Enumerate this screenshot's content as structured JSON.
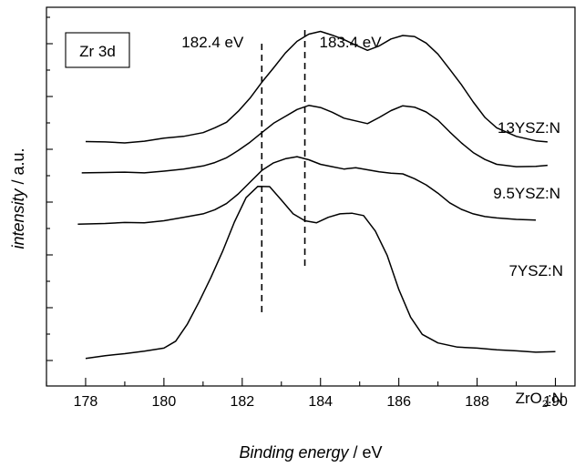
{
  "chart_data": {
    "type": "line",
    "xlabel": "Binding energy",
    "xunit": " / eV",
    "ylabel_italic": "intensity",
    "ylabel_unit": " / a.u.",
    "panel_label": "Zr 3d",
    "xlim": [
      177,
      190.5
    ],
    "xticks": [
      178,
      180,
      182,
      184,
      186,
      188,
      190
    ],
    "y_tick_labels_shown": false,
    "grid": false,
    "markers": [
      {
        "x": 182.5,
        "label": "182.4 eV"
      },
      {
        "x": 183.6,
        "label": "183.4 eV"
      }
    ],
    "series": [
      {
        "name": "13YSZ:N",
        "label_main": "13YSZ:N",
        "x": [
          178.0,
          178.5,
          179.0,
          179.5,
          180.0,
          180.5,
          181.0,
          181.3,
          181.6,
          181.9,
          182.2,
          182.5,
          182.8,
          183.1,
          183.4,
          183.7,
          184.0,
          184.3,
          184.6,
          184.9,
          185.2,
          185.5,
          185.8,
          186.1,
          186.4,
          186.7,
          187.0,
          187.3,
          187.6,
          187.9,
          188.2,
          188.5,
          189.0,
          189.5,
          189.8
        ],
        "y": [
          0.23,
          0.229,
          0.226,
          0.231,
          0.24,
          0.245,
          0.256,
          0.27,
          0.286,
          0.318,
          0.356,
          0.402,
          0.444,
          0.487,
          0.521,
          0.542,
          0.55,
          0.539,
          0.526,
          0.51,
          0.495,
          0.508,
          0.528,
          0.538,
          0.535,
          0.516,
          0.484,
          0.44,
          0.395,
          0.345,
          0.3,
          0.27,
          0.245,
          0.232,
          0.229
        ]
      },
      {
        "name": "9.5YSZ:N",
        "label_main": "9.5YSZ:N",
        "x": [
          177.9,
          178.5,
          179.0,
          179.5,
          180.0,
          180.5,
          181.0,
          181.3,
          181.6,
          181.9,
          182.2,
          182.5,
          182.8,
          183.1,
          183.4,
          183.7,
          184.0,
          184.3,
          184.6,
          184.9,
          185.2,
          185.5,
          185.8,
          186.1,
          186.4,
          186.7,
          187.0,
          187.3,
          187.6,
          187.9,
          188.2,
          188.5,
          189.0,
          189.5,
          189.8
        ],
        "y": [
          0.139,
          0.14,
          0.141,
          0.139,
          0.144,
          0.15,
          0.159,
          0.169,
          0.183,
          0.204,
          0.228,
          0.256,
          0.283,
          0.303,
          0.323,
          0.335,
          0.329,
          0.315,
          0.298,
          0.29,
          0.282,
          0.3,
          0.32,
          0.334,
          0.33,
          0.316,
          0.292,
          0.258,
          0.226,
          0.198,
          0.178,
          0.164,
          0.157,
          0.158,
          0.161
        ]
      },
      {
        "name": "7YSZ:N",
        "label_main": "7YSZ:N",
        "x": [
          177.8,
          178.5,
          179.0,
          179.5,
          180.0,
          180.5,
          181.0,
          181.3,
          181.6,
          181.9,
          182.2,
          182.5,
          182.8,
          183.1,
          183.4,
          183.7,
          184.0,
          184.3,
          184.6,
          184.9,
          185.2,
          185.5,
          185.8,
          186.1,
          186.4,
          186.7,
          187.0,
          187.3,
          187.6,
          187.9,
          188.2,
          188.5,
          189.0,
          189.5
        ],
        "y": [
          -0.01,
          -0.008,
          -0.005,
          -0.006,
          0.0,
          0.01,
          0.02,
          0.032,
          0.05,
          0.078,
          0.112,
          0.146,
          0.168,
          0.18,
          0.186,
          0.177,
          0.164,
          0.157,
          0.15,
          0.154,
          0.148,
          0.142,
          0.138,
          0.136,
          0.122,
          0.104,
          0.08,
          0.052,
          0.033,
          0.02,
          0.012,
          0.008,
          0.004,
          0.002
        ]
      },
      {
        "name": "ZrO2:N",
        "label_main": "ZrO",
        "label_sub": "2",
        "label_tail": ":N",
        "x": [
          178.0,
          178.5,
          179.0,
          179.5,
          180.0,
          180.3,
          180.6,
          180.9,
          181.2,
          181.5,
          181.8,
          182.1,
          182.4,
          182.7,
          183.0,
          183.3,
          183.6,
          183.9,
          184.2,
          184.5,
          184.8,
          185.1,
          185.4,
          185.7,
          186.0,
          186.3,
          186.6,
          187.0,
          187.5,
          188.0,
          188.5,
          189.0,
          189.5,
          190.0
        ],
        "y": [
          -0.4,
          -0.392,
          -0.386,
          -0.379,
          -0.37,
          -0.35,
          -0.3,
          -0.235,
          -0.165,
          -0.089,
          -0.004,
          0.067,
          0.1,
          0.099,
          0.06,
          0.02,
          0.0,
          -0.006,
          0.01,
          0.02,
          0.022,
          0.015,
          -0.03,
          -0.1,
          -0.2,
          -0.28,
          -0.33,
          -0.355,
          -0.367,
          -0.37,
          -0.375,
          -0.378,
          -0.382,
          -0.38
        ]
      }
    ]
  }
}
